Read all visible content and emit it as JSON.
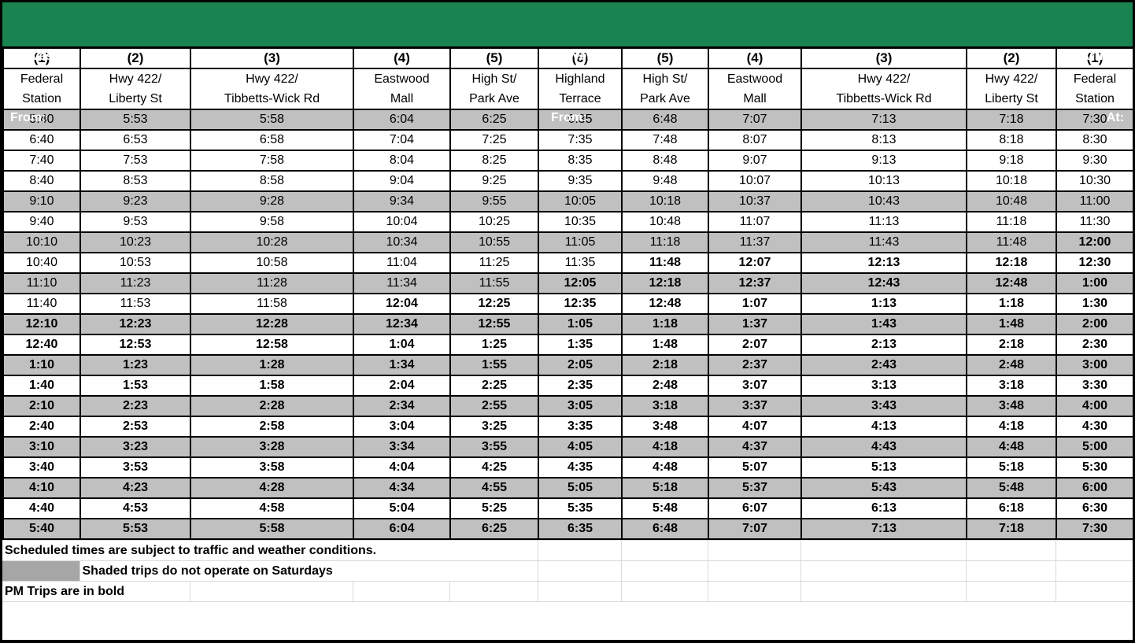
{
  "banner": {
    "left": [
      "Leaves",
      "From:"
    ],
    "center": [
      "Leaves",
      "From:"
    ],
    "right": [
      "Arrives",
      "At:"
    ]
  },
  "columns": [
    {
      "num": "(1)",
      "name": [
        "Federal",
        "Station"
      ]
    },
    {
      "num": "(2)",
      "name": [
        "Hwy 422/",
        "Liberty St"
      ]
    },
    {
      "num": "(3)",
      "name": [
        "Hwy 422/",
        "Tibbetts-Wick Rd"
      ]
    },
    {
      "num": "(4)",
      "name": [
        "Eastwood",
        "Mall"
      ]
    },
    {
      "num": "(5)",
      "name": [
        "High St/",
        "Park Ave"
      ]
    },
    {
      "num": "(6)",
      "name": [
        "Highland",
        "Terrace"
      ]
    },
    {
      "num": "(5)",
      "name": [
        "High St/",
        "Park Ave"
      ]
    },
    {
      "num": "(4)",
      "name": [
        "Eastwood",
        "Mall"
      ]
    },
    {
      "num": "(3)",
      "name": [
        "Hwy 422/",
        "Tibbetts-Wick Rd"
      ]
    },
    {
      "num": "(2)",
      "name": [
        "Hwy 422/",
        "Liberty St"
      ]
    },
    {
      "num": "(1)",
      "name": [
        "Federal",
        "Station"
      ]
    }
  ],
  "schedule": {
    "rows": [
      {
        "shaded": true,
        "bold_from": 11,
        "times": [
          "5:40",
          "5:53",
          "5:58",
          "6:04",
          "6:25",
          "6:35",
          "6:48",
          "7:07",
          "7:13",
          "7:18",
          "7:30"
        ]
      },
      {
        "shaded": false,
        "bold_from": 11,
        "times": [
          "6:40",
          "6:53",
          "6:58",
          "7:04",
          "7:25",
          "7:35",
          "7:48",
          "8:07",
          "8:13",
          "8:18",
          "8:30"
        ]
      },
      {
        "shaded": false,
        "bold_from": 11,
        "times": [
          "7:40",
          "7:53",
          "7:58",
          "8:04",
          "8:25",
          "8:35",
          "8:48",
          "9:07",
          "9:13",
          "9:18",
          "9:30"
        ]
      },
      {
        "shaded": false,
        "bold_from": 11,
        "times": [
          "8:40",
          "8:53",
          "8:58",
          "9:04",
          "9:25",
          "9:35",
          "9:48",
          "10:07",
          "10:13",
          "10:18",
          "10:30"
        ]
      },
      {
        "shaded": true,
        "bold_from": 11,
        "times": [
          "9:10",
          "9:23",
          "9:28",
          "9:34",
          "9:55",
          "10:05",
          "10:18",
          "10:37",
          "10:43",
          "10:48",
          "11:00"
        ]
      },
      {
        "shaded": false,
        "bold_from": 11,
        "times": [
          "9:40",
          "9:53",
          "9:58",
          "10:04",
          "10:25",
          "10:35",
          "10:48",
          "11:07",
          "11:13",
          "11:18",
          "11:30"
        ]
      },
      {
        "shaded": true,
        "bold_from": 10,
        "times": [
          "10:10",
          "10:23",
          "10:28",
          "10:34",
          "10:55",
          "11:05",
          "11:18",
          "11:37",
          "11:43",
          "11:48",
          "12:00"
        ]
      },
      {
        "shaded": false,
        "bold_from": 6,
        "times": [
          "10:40",
          "10:53",
          "10:58",
          "11:04",
          "11:25",
          "11:35",
          "11:48",
          "12:07",
          "12:13",
          "12:18",
          "12:30"
        ]
      },
      {
        "shaded": true,
        "bold_from": 5,
        "times": [
          "11:10",
          "11:23",
          "11:28",
          "11:34",
          "11:55",
          "12:05",
          "12:18",
          "12:37",
          "12:43",
          "12:48",
          "1:00"
        ]
      },
      {
        "shaded": false,
        "bold_from": 3,
        "times": [
          "11:40",
          "11:53",
          "11:58",
          "12:04",
          "12:25",
          "12:35",
          "12:48",
          "1:07",
          "1:13",
          "1:18",
          "1:30"
        ]
      },
      {
        "shaded": true,
        "bold_from": 0,
        "times": [
          "12:10",
          "12:23",
          "12:28",
          "12:34",
          "12:55",
          "1:05",
          "1:18",
          "1:37",
          "1:43",
          "1:48",
          "2:00"
        ]
      },
      {
        "shaded": false,
        "bold_from": 0,
        "times": [
          "12:40",
          "12:53",
          "12:58",
          "1:04",
          "1:25",
          "1:35",
          "1:48",
          "2:07",
          "2:13",
          "2:18",
          "2:30"
        ]
      },
      {
        "shaded": true,
        "bold_from": 0,
        "times": [
          "1:10",
          "1:23",
          "1:28",
          "1:34",
          "1:55",
          "2:05",
          "2:18",
          "2:37",
          "2:43",
          "2:48",
          "3:00"
        ]
      },
      {
        "shaded": false,
        "bold_from": 0,
        "times": [
          "1:40",
          "1:53",
          "1:58",
          "2:04",
          "2:25",
          "2:35",
          "2:48",
          "3:07",
          "3:13",
          "3:18",
          "3:30"
        ]
      },
      {
        "shaded": true,
        "bold_from": 0,
        "times": [
          "2:10",
          "2:23",
          "2:28",
          "2:34",
          "2:55",
          "3:05",
          "3:18",
          "3:37",
          "3:43",
          "3:48",
          "4:00"
        ]
      },
      {
        "shaded": false,
        "bold_from": 0,
        "times": [
          "2:40",
          "2:53",
          "2:58",
          "3:04",
          "3:25",
          "3:35",
          "3:48",
          "4:07",
          "4:13",
          "4:18",
          "4:30"
        ]
      },
      {
        "shaded": true,
        "bold_from": 0,
        "times": [
          "3:10",
          "3:23",
          "3:28",
          "3:34",
          "3:55",
          "4:05",
          "4:18",
          "4:37",
          "4:43",
          "4:48",
          "5:00"
        ]
      },
      {
        "shaded": false,
        "bold_from": 0,
        "times": [
          "3:40",
          "3:53",
          "3:58",
          "4:04",
          "4:25",
          "4:35",
          "4:48",
          "5:07",
          "5:13",
          "5:18",
          "5:30"
        ]
      },
      {
        "shaded": true,
        "bold_from": 0,
        "times": [
          "4:10",
          "4:23",
          "4:28",
          "4:34",
          "4:55",
          "5:05",
          "5:18",
          "5:37",
          "5:43",
          "5:48",
          "6:00"
        ]
      },
      {
        "shaded": false,
        "bold_from": 0,
        "times": [
          "4:40",
          "4:53",
          "4:58",
          "5:04",
          "5:25",
          "5:35",
          "5:48",
          "6:07",
          "6:13",
          "6:18",
          "6:30"
        ]
      },
      {
        "shaded": true,
        "bold_from": 0,
        "times": [
          "5:40",
          "5:53",
          "5:58",
          "6:04",
          "6:25",
          "6:35",
          "6:48",
          "7:07",
          "7:13",
          "7:18",
          "7:30"
        ]
      }
    ]
  },
  "footer": {
    "note1": "Scheduled times are subject to traffic and weather conditions.",
    "note2": "Shaded trips do not operate on Saturdays",
    "note3": "PM Trips are in bold"
  },
  "colors": {
    "header_green": "#1a8451",
    "shaded_row": "#c0c0c0",
    "footer_swatch": "#a6a6a6",
    "grid_line": "#000000",
    "footer_grid_line": "#d9d9d9"
  }
}
